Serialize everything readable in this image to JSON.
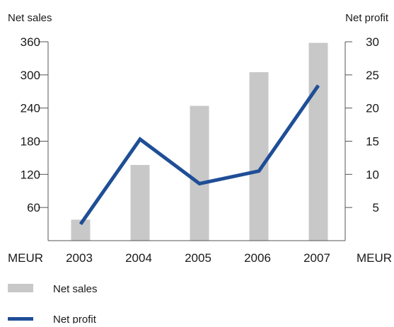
{
  "chart_data": {
    "type": "bar+line",
    "categories": [
      "2003",
      "2004",
      "2005",
      "2006",
      "2007"
    ],
    "series": [
      {
        "name": "Net sales",
        "kind": "bar",
        "axis": "left",
        "color": "#c8c8c8",
        "values": [
          38,
          137,
          244,
          305,
          358
        ]
      },
      {
        "name": "Net profit",
        "kind": "line",
        "axis": "right",
        "color": "#1f4e96",
        "values": [
          2.5,
          15.3,
          8.6,
          10.5,
          23.4
        ]
      }
    ],
    "y_left": {
      "label": "Net sales",
      "unit": "MEUR",
      "ylim": [
        0,
        360
      ],
      "ticks": [
        60,
        120,
        180,
        240,
        300,
        360
      ]
    },
    "y_right": {
      "label": "Net profit",
      "unit": "MEUR",
      "ylim": [
        0,
        30
      ],
      "ticks": [
        5,
        10,
        15,
        20,
        25,
        30
      ]
    },
    "legend_position": "bottom-left",
    "grid": false
  }
}
